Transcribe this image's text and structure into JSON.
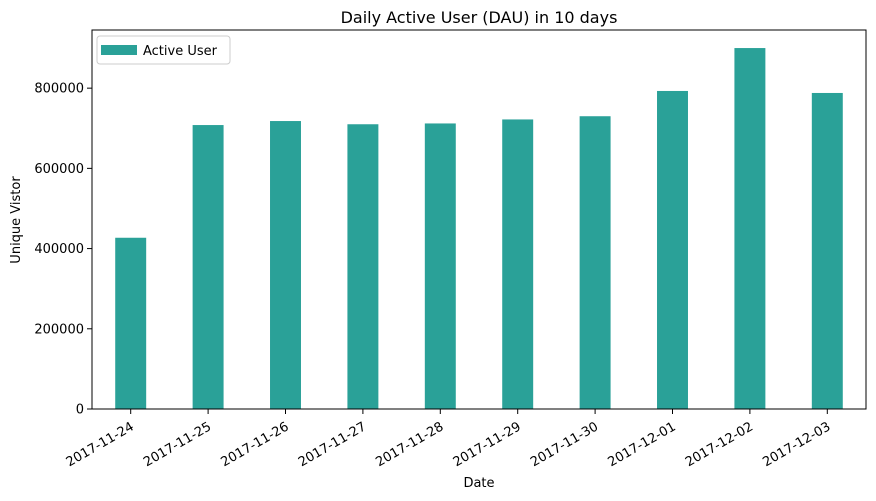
{
  "chart_data": {
    "type": "bar",
    "title": "Daily Active User (DAU) in 10 days",
    "xlabel": "Date",
    "ylabel": "Unique Vistor",
    "categories": [
      "2017-11-24",
      "2017-11-25",
      "2017-11-26",
      "2017-11-27",
      "2017-11-28",
      "2017-11-29",
      "2017-11-30",
      "2017-12-01",
      "2017-12-02",
      "2017-12-03"
    ],
    "series": [
      {
        "name": "Active User",
        "color": "#2aa198",
        "values": [
          427000,
          708000,
          718000,
          710000,
          712000,
          722000,
          730000,
          793000,
          900000,
          788000
        ]
      }
    ],
    "ylim": [
      0,
      945000
    ],
    "yticks": [
      0,
      200000,
      400000,
      600000,
      800000
    ],
    "ytick_labels": [
      "0",
      "200000",
      "400000",
      "600000",
      "800000"
    ],
    "legend_position": "top-left",
    "grid": false
  }
}
